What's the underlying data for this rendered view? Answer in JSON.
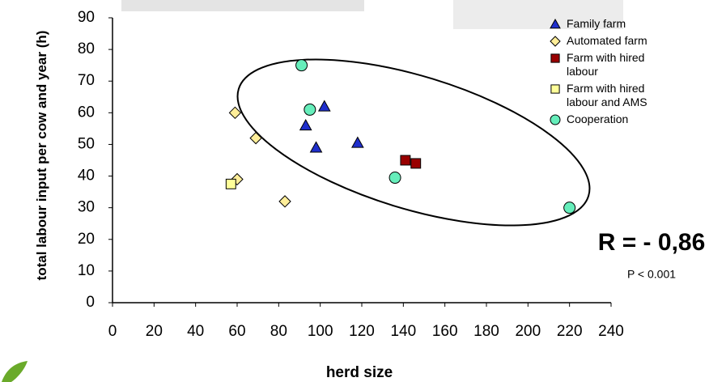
{
  "chart_data": {
    "type": "scatter",
    "ylabel": "total labour input per cow and year (h)",
    "xlabel": "herd size",
    "xlim": [
      0,
      240
    ],
    "xticks": [
      0,
      20,
      40,
      60,
      80,
      100,
      120,
      140,
      160,
      180,
      200,
      220,
      240
    ],
    "ylim": [
      0,
      90
    ],
    "yticks": [
      0,
      10,
      20,
      30,
      40,
      50,
      60,
      70,
      80,
      90
    ],
    "grid": false,
    "legend": "top-right",
    "series": [
      {
        "name": "Family farm",
        "color": "#1f2fcc",
        "marker": "triangle",
        "x": [
          93,
          102,
          98,
          118
        ],
        "values": [
          56,
          62,
          49,
          50.5
        ]
      },
      {
        "name": "Automated  farm",
        "color": "#ffee99",
        "marker": "diamond",
        "x": [
          59,
          69,
          60,
          83
        ],
        "values": [
          60,
          52,
          39,
          32
        ]
      },
      {
        "name": "Farm with hired labour",
        "color": "#990000",
        "marker": "square",
        "x": [
          141,
          146
        ],
        "values": [
          45,
          44
        ]
      },
      {
        "name": "Farm with hired labour and AMS",
        "color": "#ffff99",
        "marker": "square",
        "x": [
          57
        ],
        "values": [
          37.5
        ]
      },
      {
        "name": "Cooperation",
        "color": "#66eebb",
        "marker": "circle",
        "x": [
          91,
          95,
          136,
          220
        ],
        "values": [
          75,
          61,
          39.5,
          30
        ]
      }
    ],
    "annotations": [
      "R = - 0,86",
      "P < 0.001"
    ]
  }
}
